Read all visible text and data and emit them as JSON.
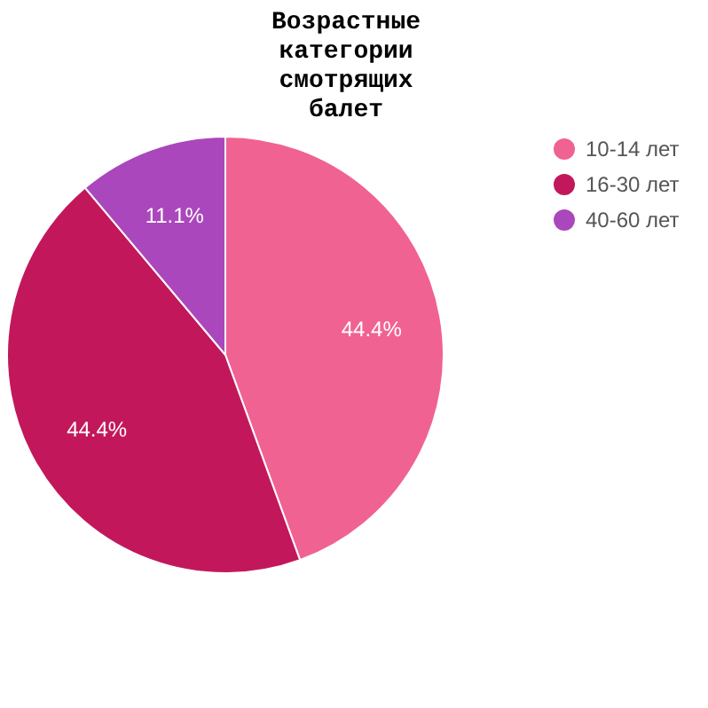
{
  "chart_data": {
    "type": "pie",
    "title": "Возрастные категории смотрящих балет",
    "categories": [
      "10-14 лет",
      "16-30 лет",
      "40-60 лет"
    ],
    "values": [
      44.4,
      44.4,
      11.1
    ],
    "colors": [
      "#f06292",
      "#c2185b",
      "#ab47bc"
    ],
    "value_labels": [
      "44.4%",
      "44.4%",
      "11.1%"
    ],
    "legend": "right"
  }
}
